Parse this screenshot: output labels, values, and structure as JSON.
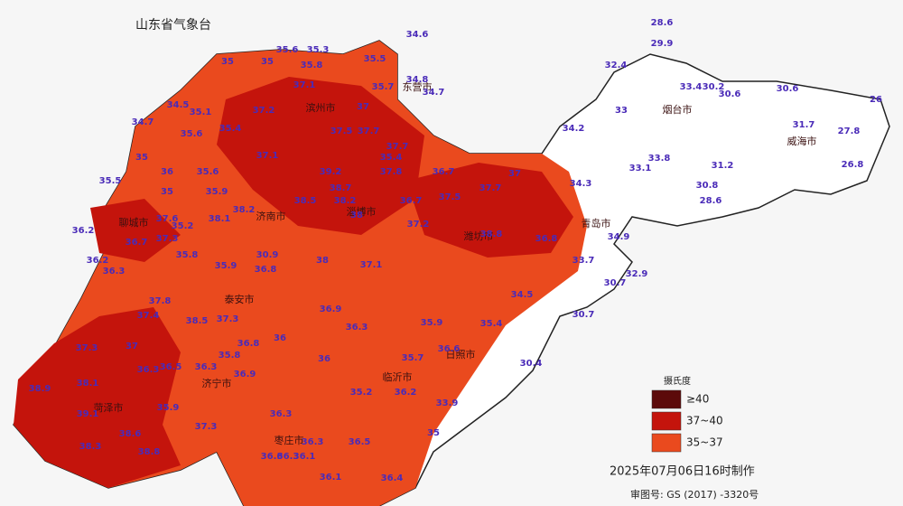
{
  "title": "山东省气象台",
  "cities": [
    "聊城市",
    "济南市",
    "滨州市",
    "东营市",
    "淄博市",
    "潍坊市",
    "青岛市",
    "烟台市",
    "威海市",
    "日照市",
    "临沂市",
    "泰安市",
    "济宁市",
    "菏泽市",
    "枣庄市"
  ],
  "readings": [
    28.6,
    29.9,
    34.6,
    35.6,
    35.3,
    35,
    35,
    35.8,
    35.5,
    32.4,
    34.8,
    34.7,
    35.7,
    37.1,
    33.4,
    30.2,
    30.6,
    30.6,
    26,
    34.5,
    35.1,
    37.2,
    37,
    34.7,
    33,
    31.7,
    35.6,
    35.4,
    37.5,
    37.7,
    34.2,
    27.8,
    37.1,
    37.7,
    35.4,
    35,
    36,
    35.6,
    39.2,
    37.8,
    36.7,
    37,
    33.8,
    33.1,
    26.8,
    31.2,
    35.5,
    35.9,
    38.5,
    38.7,
    37.5,
    37.7,
    34.3,
    35,
    36.7,
    38.2,
    30.8,
    28.6,
    38.2,
    38.1,
    37.6,
    36.2,
    35.2,
    36.7,
    37.3,
    38,
    37.2,
    38.8,
    36.8,
    34.9,
    33.7,
    36.2,
    36.3,
    35.8,
    35.9,
    30.9,
    36.8,
    38,
    37.1,
    32.9,
    30.7,
    34.5,
    37.8,
    37.4,
    38.5,
    37.3,
    36.9,
    30.7,
    36.3,
    35.9,
    35.4,
    37.3,
    37,
    36.8,
    36,
    36.6,
    35.8,
    36.3,
    36.5,
    36.3,
    36.9,
    36,
    35.7,
    30.4,
    38.9,
    38.1,
    35.2,
    36.2,
    33.9,
    39.1,
    35.9,
    36.3,
    37.3,
    35,
    38.3,
    38.6,
    38.8,
    36.5,
    36.3,
    36.6,
    36.3,
    36.1,
    36.1,
    36.4
  ],
  "legend": {
    "title": "摄氏度",
    "items": [
      {
        "label": "≥40",
        "color": "#5c0a0a"
      },
      {
        "label": "37~40",
        "color": "#c4140c"
      },
      {
        "label": "35~37",
        "color": "#ea4a1e"
      }
    ]
  },
  "footer": {
    "made": "2025年07月06日16时制作",
    "approval": "审图号: GS (2017) -3320号"
  }
}
